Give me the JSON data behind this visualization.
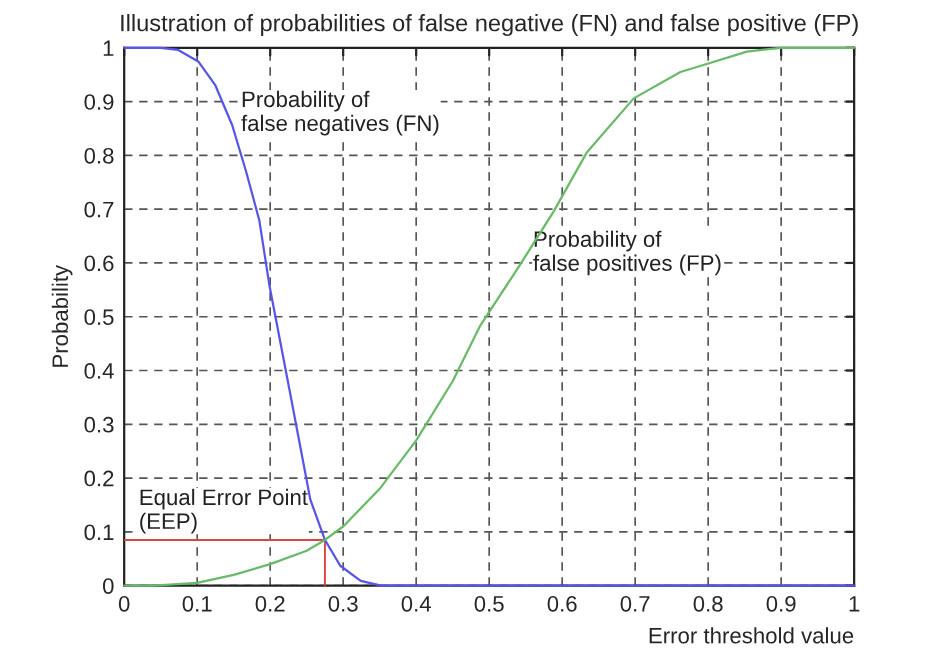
{
  "chart_data": {
    "type": "line",
    "title": "Illustration of probabilities of false negative (FN) and false positive (FP)",
    "xlabel": "Error threshold value",
    "ylabel": "Probability",
    "series": [
      {
        "name": "Probability of\nfalse negatives (FN)",
        "color": "#5555ee",
        "x": [
          0,
          0.05,
          0.074,
          0.102,
          0.125,
          0.148,
          0.167,
          0.185,
          0.199,
          0.213,
          0.227,
          0.241,
          0.255,
          0.275,
          0.296,
          0.324,
          0.352,
          0.4,
          1
        ],
        "values": [
          1,
          1,
          0.996,
          0.974,
          0.93,
          0.856,
          0.77,
          0.68,
          0.558,
          0.459,
          0.36,
          0.26,
          0.16,
          0.085,
          0.037,
          0.009,
          0,
          0,
          0
        ]
      },
      {
        "name": "Probability of\nfalse positives (FP)",
        "color": "#66bb66",
        "x": [
          0,
          0.04,
          0.1,
          0.15,
          0.2,
          0.25,
          0.275,
          0.3,
          0.35,
          0.4,
          0.45,
          0.488,
          0.542,
          0.588,
          0.634,
          0.698,
          0.762,
          0.798,
          0.853,
          0.899,
          1
        ],
        "values": [
          0,
          0,
          0.005,
          0.02,
          0.04,
          0.065,
          0.085,
          0.11,
          0.18,
          0.27,
          0.38,
          0.484,
          0.596,
          0.695,
          0.806,
          0.906,
          0.955,
          0.97,
          0.993,
          1,
          1
        ]
      }
    ],
    "annotations": [
      {
        "text": "Equal Error Point\n(EEP)",
        "x": 0.275,
        "y": 0.085
      }
    ],
    "xlim": [
      0,
      1
    ],
    "ylim": [
      0,
      1
    ],
    "xticks": [
      0,
      0.1,
      0.2,
      0.3,
      0.4,
      0.5,
      0.6,
      0.7,
      0.8,
      0.9,
      1
    ],
    "yticks": [
      0,
      0.1,
      0.2,
      0.3,
      0.4,
      0.5,
      0.6,
      0.7,
      0.8,
      0.9,
      1
    ],
    "grid": true,
    "line_style": "solid",
    "marker": "none",
    "legend": false
  }
}
